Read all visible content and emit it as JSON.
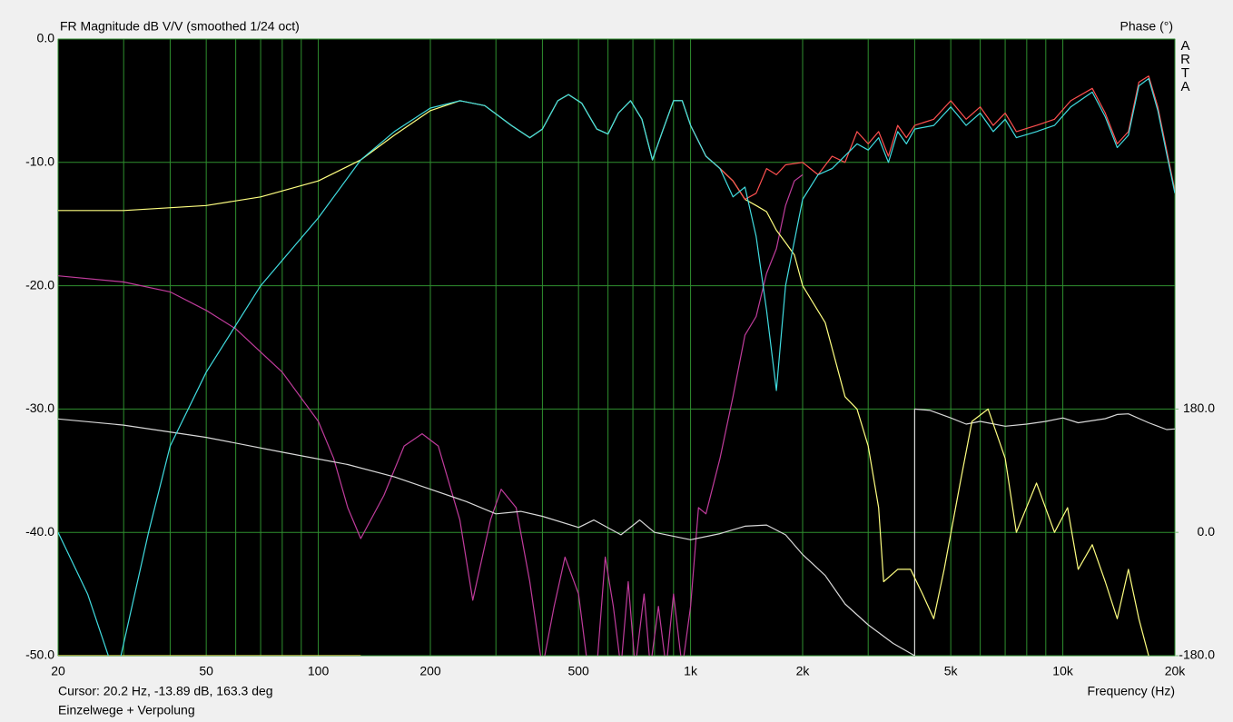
{
  "chart_data": {
    "type": "line",
    "title": "FR Magnitude dB V/V (smoothed 1/24 oct)",
    "y2_label": "Phase (°)",
    "brand": "ARTA",
    "x_label": "Frequency (Hz)",
    "cursor": "Cursor: 20.2 Hz, -13.89 dB, 163.3 deg",
    "note": "Einzelwege + Verpolung",
    "log_x": true,
    "grid": true,
    "xlim": [
      20,
      20000
    ],
    "xticks": [
      20,
      50,
      100,
      200,
      500,
      {
        "value": 1000,
        "label": "1k"
      },
      {
        "value": 2000,
        "label": "2k"
      },
      {
        "value": 5000,
        "label": "5k"
      },
      {
        "value": 10000,
        "label": "10k"
      },
      {
        "value": 20000,
        "label": "20k"
      }
    ],
    "xgrid": [
      30,
      40,
      60,
      70,
      80,
      90,
      300,
      400,
      600,
      700,
      800,
      900,
      3000,
      4000,
      6000,
      7000,
      8000,
      9000
    ],
    "ylim": [
      -50,
      0
    ],
    "yticks": [
      {
        "value": 0,
        "label": "0.0"
      },
      {
        "value": -10,
        "label": "-10.0"
      },
      {
        "value": -20,
        "label": "-20.0"
      },
      {
        "value": -30,
        "label": "-30.0"
      },
      {
        "value": -40,
        "label": "-40.0"
      },
      {
        "value": -50,
        "label": "-50.0"
      }
    ],
    "y2lim": [
      -180,
      720
    ],
    "y2ticks": [
      {
        "value": 180,
        "label": "180.0"
      },
      {
        "value": 0,
        "label": "0.0"
      },
      {
        "value": -180,
        "label": "-180.0"
      }
    ],
    "series": [
      {
        "color": "#c03c9c",
        "x": [
          20,
          30,
          40,
          50,
          60,
          80,
          100,
          110,
          120,
          130,
          150,
          170,
          190,
          210,
          240,
          260,
          290,
          310,
          340,
          370,
          400,
          430,
          460,
          500,
          530,
          560,
          590,
          620,
          650,
          680,
          710,
          750,
          780,
          820,
          860,
          900,
          950,
          1000,
          1050,
          1100,
          1200,
          1300,
          1400,
          1500,
          1600,
          1700,
          1800,
          1900,
          2000
        ],
        "values": [
          -19.2,
          -19.7,
          -20.5,
          -22,
          -23.5,
          -27,
          -31,
          -34,
          -38,
          -40.5,
          -37,
          -33,
          -32,
          -33,
          -39,
          -45.5,
          -39,
          -36.5,
          -38,
          -44,
          -51,
          -46,
          -42,
          -45,
          -51,
          -51,
          -42,
          -46,
          -51,
          -44,
          -51,
          -45,
          -51,
          -46,
          -51,
          -45,
          -51,
          -46,
          -38,
          -38.5,
          -34,
          -29,
          -24,
          -22.5,
          -19,
          -17,
          -13.5,
          -11.5,
          -11
        ]
      },
      {
        "color": "#d8d8d8",
        "axis": "y2",
        "x": [
          20,
          30,
          50,
          80,
          120,
          160,
          200,
          250,
          300,
          350,
          400,
          500,
          550,
          650,
          730,
          800,
          1000,
          1200,
          1400,
          1600,
          1800,
          2000,
          2300,
          2600,
          3000,
          3500,
          4000,
          4000,
          4400,
          5000,
          5500,
          6000,
          7000,
          8000,
          9000,
          10000,
          11000,
          13000,
          14000,
          15000,
          17000,
          18000,
          19000,
          20000
        ],
        "values": [
          165.6,
          156.6,
          138.6,
          117,
          99,
          81,
          63,
          45,
          27,
          30.6,
          23.4,
          7.2,
          18,
          -3.6,
          18,
          0,
          -10.8,
          -1.8,
          9,
          10.8,
          -3.6,
          -32.4,
          -63,
          -104.4,
          -135,
          -162,
          -180,
          180,
          178,
          167,
          158,
          162,
          155,
          158,
          162,
          167,
          160,
          166,
          172,
          173,
          160,
          155,
          150,
          151
        ]
      },
      {
        "color": "#e6e650",
        "x": [
          20,
          130
        ],
        "values": [
          -50,
          -50
        ]
      },
      {
        "color": "#ffff80",
        "x": [
          20,
          30,
          50,
          70,
          100,
          130,
          160,
          200,
          240,
          280,
          330,
          370,
          400,
          440,
          470,
          510,
          560,
          600,
          640,
          690,
          740,
          790,
          840,
          900,
          950,
          1000,
          1100,
          1200,
          1300,
          1400,
          1500,
          1600,
          1700,
          1800,
          1900,
          2000,
          2300,
          2600,
          2800,
          3000,
          3200,
          3300,
          3600,
          3900,
          4200,
          4500,
          4800,
          5300,
          5700,
          6300,
          7000,
          7500,
          8500,
          9500,
          10300,
          11000,
          12000,
          13000,
          14000,
          15000,
          16000,
          17000
        ],
        "values": [
          -13.9,
          -13.9,
          -13.5,
          -12.8,
          -11.5,
          -9.8,
          -7.8,
          -5.8,
          -5.0,
          -5.4,
          -7.0,
          -8.0,
          -7.3,
          -5.0,
          -4.5,
          -5.2,
          -7.3,
          -7.7,
          -6.0,
          -5.0,
          -6.5,
          -9.8,
          -7.5,
          -5.0,
          -5.0,
          -7.0,
          -9.5,
          -10.5,
          -11.5,
          -13.0,
          -13.5,
          -14,
          -15.5,
          -16.5,
          -17.5,
          -20,
          -23,
          -29,
          -30,
          -33,
          -38,
          -44,
          -43,
          -43,
          -45,
          -47,
          -43,
          -36,
          -31,
          -30,
          -34,
          -40,
          -36,
          -40,
          -38,
          -43,
          -41,
          -44,
          -47,
          -43,
          -47,
          -50
        ]
      },
      {
        "color": "#ff5050",
        "x": [
          1000,
          1100,
          1200,
          1300,
          1400,
          1500,
          1600,
          1700,
          1800,
          2000,
          2200,
          2400,
          2600,
          2800,
          3000,
          3200,
          3400,
          3600,
          3800,
          4000,
          4500,
          5000,
          5500,
          6000,
          6500,
          7000,
          7500,
          8500,
          9500,
          10500,
          12000,
          13000,
          14000,
          15000,
          16000,
          17000,
          18000,
          19000,
          20000
        ],
        "values": [
          -7.0,
          -9.5,
          -10.5,
          -11.5,
          -13.0,
          -12.5,
          -10.5,
          -11.0,
          -10.2,
          -10.0,
          -11.0,
          -9.5,
          -10.0,
          -7.5,
          -8.5,
          -7.5,
          -9.5,
          -7.0,
          -8.0,
          -7.0,
          -6.5,
          -5.0,
          -6.5,
          -5.5,
          -7.0,
          -6.0,
          -7.5,
          -7.0,
          -6.5,
          -5.0,
          -4.0,
          -6.0,
          -8.5,
          -7.5,
          -3.5,
          -3.0,
          -5.5,
          -9.0,
          -12.3
        ]
      },
      {
        "color": "#40dce0",
        "x": [
          20,
          24,
          28,
          29.5,
          35,
          40,
          50,
          70,
          100,
          130,
          160,
          200,
          240,
          280,
          330,
          370,
          400,
          440,
          470,
          510,
          560,
          600,
          640,
          690,
          740,
          790,
          840,
          900,
          950,
          1000,
          1100,
          1200,
          1300,
          1400,
          1500,
          1600,
          1700,
          1800,
          2000,
          2200,
          2400,
          2800,
          3000,
          3200,
          3400,
          3600,
          3800,
          4000,
          4500,
          5000,
          5500,
          6000,
          6500,
          7000,
          7500,
          8500,
          9500,
          10500,
          12000,
          13000,
          14000,
          15000,
          16000,
          17000,
          18000,
          19000,
          20000
        ],
        "values": [
          -40,
          -45,
          -51,
          -50,
          -40,
          -33,
          -27,
          -20,
          -14.5,
          -9.8,
          -7.5,
          -5.6,
          -5.0,
          -5.4,
          -7.0,
          -8.0,
          -7.3,
          -5.0,
          -4.5,
          -5.2,
          -7.3,
          -7.7,
          -6.0,
          -5.0,
          -6.5,
          -9.8,
          -7.5,
          -5.0,
          -5.0,
          -7.0,
          -9.5,
          -10.5,
          -12.8,
          -12.0,
          -16,
          -22,
          -28.5,
          -20,
          -13,
          -11,
          -10.5,
          -8.5,
          -9.0,
          -8.0,
          -10.0,
          -7.5,
          -8.5,
          -7.3,
          -7.0,
          -5.5,
          -7.0,
          -6.0,
          -7.5,
          -6.5,
          -8.0,
          -7.5,
          -7.0,
          -5.5,
          -4.3,
          -6.3,
          -8.8,
          -7.8,
          -3.8,
          -3.2,
          -5.8,
          -9.3,
          -12.5
        ]
      }
    ]
  }
}
